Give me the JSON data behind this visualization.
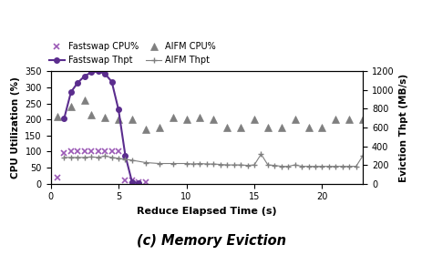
{
  "title": "(c) Memory Eviction",
  "xlabel": "Reduce Elapsed Time (s)",
  "ylabel_left": "CPU Utilization (%)",
  "ylabel_right": "Eviction Thpt (MB/s)",
  "ylim_left": [
    0,
    350
  ],
  "ylim_right": [
    0,
    1200
  ],
  "yticks_left": [
    0,
    50,
    100,
    150,
    200,
    250,
    300,
    350
  ],
  "yticks_right": [
    0,
    200,
    400,
    600,
    800,
    1000,
    1200
  ],
  "xlim": [
    0,
    23
  ],
  "xticks": [
    0,
    5,
    10,
    15,
    20
  ],
  "fastswap_cpu_x": [
    0.5,
    1.0,
    1.5,
    2.0,
    2.5,
    3.0,
    3.5,
    4.0,
    4.5,
    5.0,
    5.5,
    6.0,
    6.5,
    7.0
  ],
  "fastswap_cpu_y": [
    20,
    95,
    100,
    100,
    100,
    100,
    100,
    100,
    100,
    100,
    10,
    10,
    5,
    5
  ],
  "fastswap_thpt_x": [
    1.0,
    1.5,
    2.0,
    2.5,
    3.0,
    3.5,
    4.0,
    4.5,
    5.0,
    5.5,
    6.0,
    6.5
  ],
  "fastswap_thpt_y": [
    700,
    980,
    1080,
    1150,
    1190,
    1200,
    1175,
    1090,
    790,
    300,
    15,
    10
  ],
  "aifm_cpu_x": [
    0.5,
    1.5,
    2.5,
    3.0,
    4.0,
    5.0,
    6.0,
    7.0,
    8.0,
    9.0,
    10.0,
    11.0,
    12.0,
    13.0,
    14.0,
    15.0,
    16.0,
    17.0,
    18.0,
    19.0,
    20.0,
    21.0,
    22.0,
    23.0
  ],
  "aifm_cpu_y": [
    210,
    240,
    260,
    215,
    205,
    200,
    200,
    170,
    175,
    205,
    200,
    205,
    200,
    175,
    175,
    200,
    175,
    175,
    200,
    175,
    175,
    200,
    200,
    200
  ],
  "aifm_thpt_x": [
    1.0,
    1.5,
    2.0,
    2.5,
    3.0,
    3.5,
    4.0,
    4.5,
    5.0,
    5.5,
    6.0,
    7.0,
    8.0,
    9.0,
    10.0,
    10.5,
    11.0,
    11.5,
    12.0,
    12.5,
    13.0,
    13.5,
    14.0,
    14.5,
    15.0,
    15.5,
    16.0,
    16.5,
    17.0,
    17.5,
    18.0,
    18.5,
    19.0,
    19.5,
    20.0,
    20.5,
    21.0,
    21.5,
    22.0,
    22.5,
    23.0
  ],
  "aifm_thpt_y": [
    280,
    280,
    280,
    280,
    285,
    280,
    295,
    280,
    270,
    260,
    250,
    225,
    215,
    215,
    215,
    210,
    215,
    210,
    210,
    205,
    200,
    200,
    200,
    195,
    200,
    315,
    200,
    195,
    185,
    185,
    200,
    185,
    185,
    185,
    185,
    185,
    185,
    185,
    185,
    185,
    300
  ],
  "fastswap_cpu_color": "#9b59b6",
  "fastswap_thpt_color": "#5b2d8e",
  "aifm_cpu_color": "#7f7f7f",
  "aifm_thpt_color": "#7f7f7f"
}
